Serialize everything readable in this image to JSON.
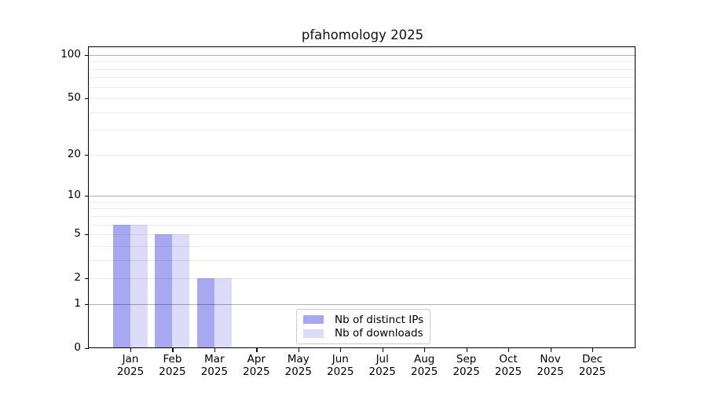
{
  "chart_data": {
    "type": "bar",
    "title": "pfahomology 2025",
    "x_tick_months": [
      "Jan",
      "Feb",
      "Mar",
      "Apr",
      "May",
      "Jun",
      "Jul",
      "Aug",
      "Sep",
      "Oct",
      "Nov",
      "Dec"
    ],
    "x_tick_year": "2025",
    "categories": [
      "Jan 2025",
      "Feb 2025",
      "Mar 2025",
      "Apr 2025",
      "May 2025",
      "Jun 2025",
      "Jul 2025",
      "Aug 2025",
      "Sep 2025",
      "Oct 2025",
      "Nov 2025",
      "Dec 2025"
    ],
    "series": [
      {
        "name": "Nb of distinct IPs",
        "color": "#a8a8f2",
        "values": [
          6,
          5,
          2,
          0,
          0,
          0,
          0,
          0,
          0,
          0,
          0,
          0
        ]
      },
      {
        "name": "Nb of downloads",
        "color": "#dcdcf8",
        "values": [
          6,
          5,
          2,
          0,
          0,
          0,
          0,
          0,
          0,
          0,
          0,
          0
        ]
      }
    ],
    "yscale": "log1p",
    "ylim": [
      0,
      115
    ],
    "y_tick_values": [
      0,
      1,
      2,
      5,
      10,
      20,
      50,
      100
    ],
    "y_tick_labels": [
      "0",
      "1",
      "2",
      "5",
      "10",
      "20",
      "50",
      "100"
    ],
    "y_major_gridlines": [
      1,
      10,
      100
    ],
    "y_minor_gridlines": [
      2,
      3,
      4,
      5,
      6,
      7,
      8,
      9,
      20,
      30,
      40,
      50,
      60,
      70,
      80,
      90
    ],
    "grid": "on",
    "legend_position": "lower-center",
    "colors": {
      "major_grid": "rgba(0,0,0,0.30)",
      "minor_grid": "rgba(0,0,0,0.08)",
      "spine": "#000000",
      "background": "#ffffff",
      "title_text": "#111111"
    }
  }
}
